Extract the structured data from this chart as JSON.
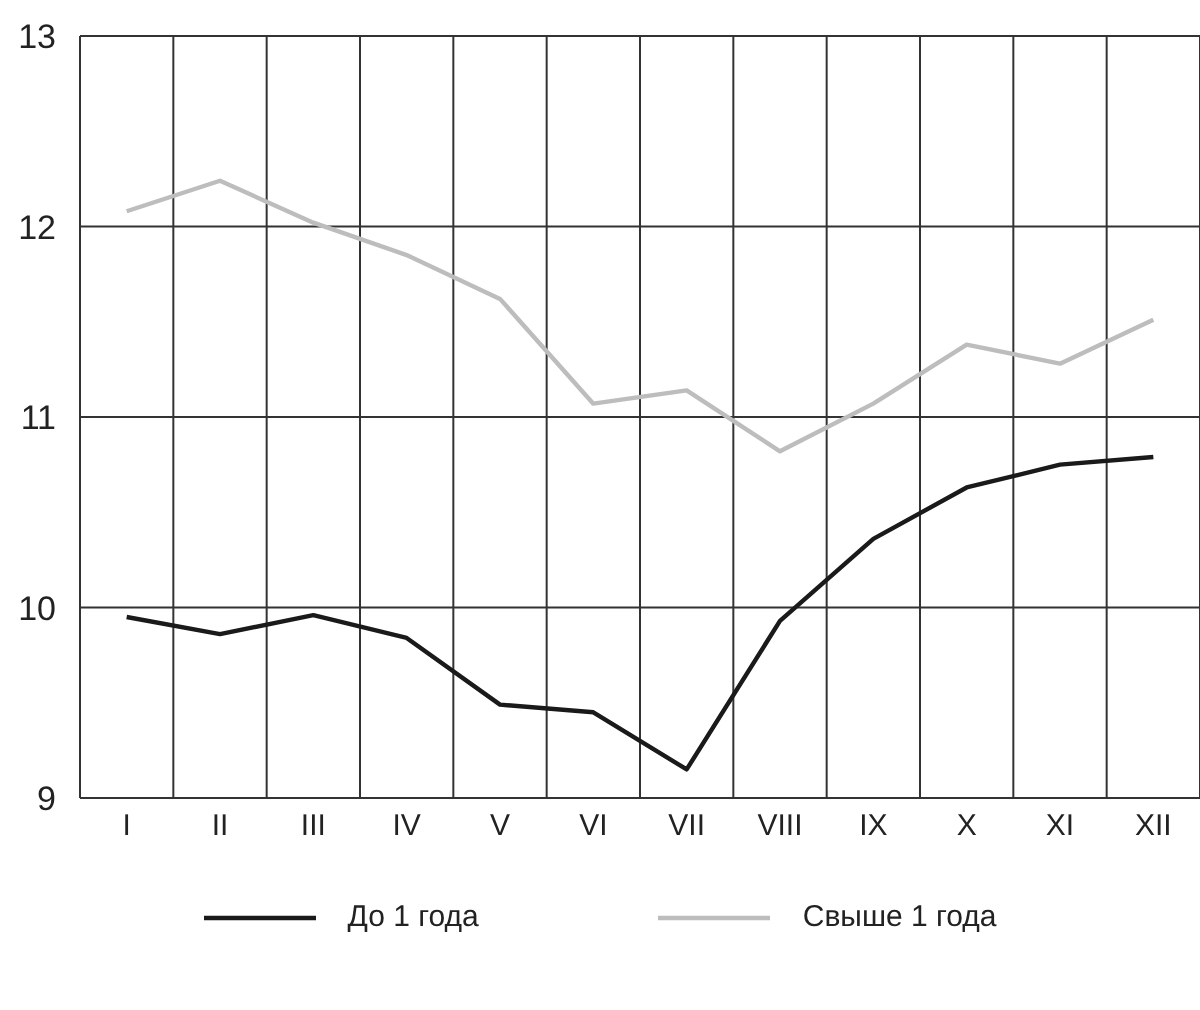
{
  "chart_data": {
    "type": "line",
    "categories": [
      "I",
      "II",
      "III",
      "IV",
      "V",
      "VI",
      "VII",
      "VIII",
      "IX",
      "X",
      "XI",
      "XII"
    ],
    "series": [
      {
        "name": "До 1 года",
        "color": "#1a1a1a",
        "values": [
          9.95,
          9.86,
          9.96,
          9.84,
          9.49,
          9.45,
          9.15,
          9.93,
          10.36,
          10.63,
          10.75,
          10.79
        ]
      },
      {
        "name": "Свыше 1 года",
        "color": "#bdbdbd",
        "values": [
          12.08,
          12.24,
          12.02,
          11.85,
          11.62,
          11.07,
          11.14,
          10.82,
          11.07,
          11.38,
          11.28,
          11.51
        ]
      }
    ],
    "ylim": [
      9,
      13
    ],
    "yticks": [
      9,
      10,
      11,
      12,
      13
    ],
    "grid": true,
    "legend": "bottom",
    "marker": "none",
    "line_style": "solid"
  }
}
